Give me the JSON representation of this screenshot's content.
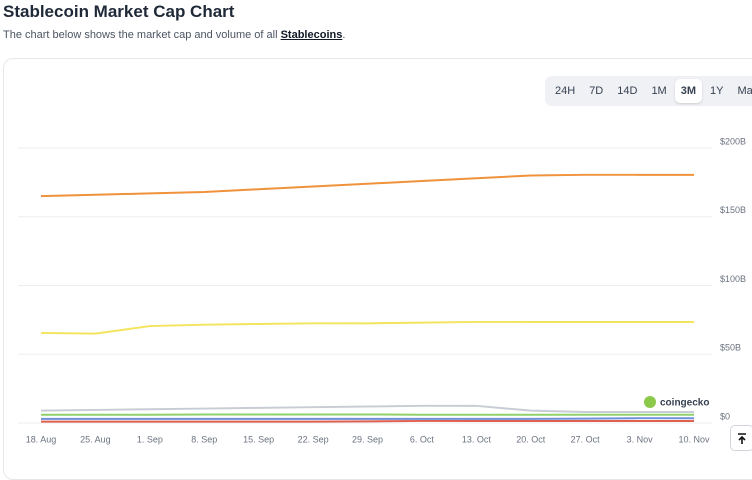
{
  "header": {
    "title": "Stablecoin Market Cap Chart",
    "description": "The chart below shows the market cap and volume of all",
    "link": "Stablecoins",
    "link_suffix": "."
  },
  "range_buttons": {
    "items": [
      "24H",
      "7D",
      "14D",
      "1M",
      "3M",
      "1Y",
      "Max"
    ],
    "active": "3M"
  },
  "watermark": "coingecko",
  "chart_data": {
    "type": "line",
    "categories": [
      "18. Aug",
      "25. Aug",
      "1. Sep",
      "8. Sep",
      "15. Sep",
      "22. Sep",
      "29. Sep",
      "6. Oct",
      "13. Oct",
      "20. Oct",
      "27. Oct",
      "3. Nov",
      "10. Nov"
    ],
    "ylim": [
      0,
      200
    ],
    "yticks": [
      {
        "value": 0,
        "label": "$0"
      },
      {
        "value": 50,
        "label": "$50B"
      },
      {
        "value": 100,
        "label": "$100B"
      },
      {
        "value": 150,
        "label": "$150B"
      },
      {
        "value": 200,
        "label": "$200B"
      }
    ],
    "grid": true,
    "series": [
      {
        "color": "#f0923c",
        "values": [
          165,
          166,
          167,
          168,
          170,
          172,
          174,
          176,
          178,
          180,
          180.5,
          180.5,
          180.5
        ]
      },
      {
        "color": "#f2e45c",
        "values": [
          65.5,
          65,
          70.5,
          71.5,
          72,
          72.5,
          72.5,
          73,
          73.5,
          73.5,
          73.5,
          73.5,
          73.5
        ]
      },
      {
        "color": "#c8ccd4",
        "values": [
          9,
          9.5,
          10,
          10.5,
          11,
          11.5,
          12,
          12.5,
          12.5,
          9,
          8,
          8,
          8
        ]
      },
      {
        "color": "#8fd16a",
        "values": [
          6,
          6,
          6,
          6.2,
          6.2,
          6.2,
          6.2,
          6,
          6,
          6,
          6,
          6,
          6
        ]
      },
      {
        "color": "#6f8fd8",
        "values": [
          3,
          3,
          3,
          3,
          3,
          3,
          3,
          3,
          3,
          3,
          3.2,
          3.5,
          3.5
        ]
      },
      {
        "color": "#e0604f",
        "values": [
          1,
          1,
          1,
          1,
          1,
          1,
          1.2,
          1.5,
          1.5,
          1.5,
          1.5,
          1.5,
          1.5
        ]
      }
    ]
  }
}
